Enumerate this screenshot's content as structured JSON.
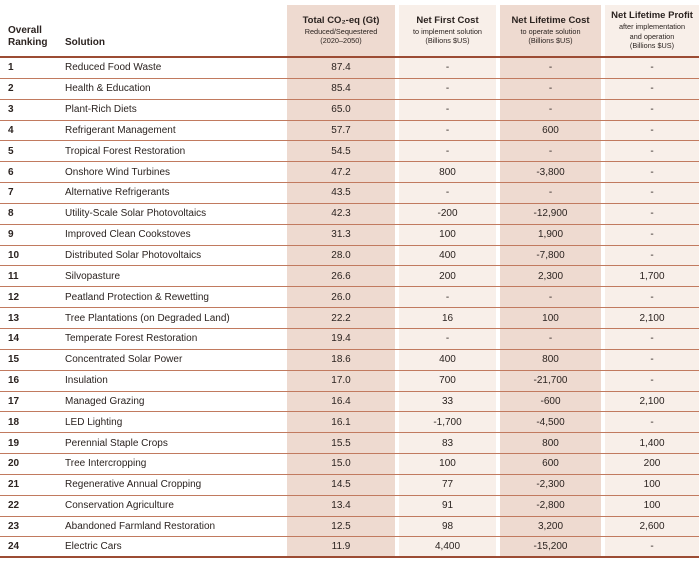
{
  "colors": {
    "cell-dark": "#eedad0",
    "cell-light": "#f8efe9",
    "line-heavy": "#9c4c34",
    "line-row": "#c17a5f",
    "text": "#2b2320"
  },
  "chart_data": {
    "type": "table",
    "columns": [
      {
        "label": "Overall Ranking"
      },
      {
        "label": "Solution"
      },
      {
        "label": "Total CO₂-eq (Gt)",
        "sub1": "Reduced/Sequestered",
        "sub2": "(2020–2050)"
      },
      {
        "label": "Net First Cost",
        "sub1": "to implement solution",
        "sub2": "(Billions $US)"
      },
      {
        "label": "Net Lifetime Cost",
        "sub1": "to operate solution",
        "sub2": "(Billions $US)"
      },
      {
        "label": "Net Lifetime Profit",
        "sub1": "after implementation",
        "sub2": "and operation",
        "sub3": "(Billions $US)"
      }
    ],
    "rows": [
      {
        "rank": "1",
        "solution": "Reduced Food Waste",
        "co2": "87.4",
        "first_cost": "-",
        "lifetime_cost": "-",
        "lifetime_profit": "-"
      },
      {
        "rank": "2",
        "solution": "Health & Education",
        "co2": "85.4",
        "first_cost": "-",
        "lifetime_cost": "-",
        "lifetime_profit": "-"
      },
      {
        "rank": "3",
        "solution": "Plant-Rich Diets",
        "co2": "65.0",
        "first_cost": "-",
        "lifetime_cost": "-",
        "lifetime_profit": "-"
      },
      {
        "rank": "4",
        "solution": "Refrigerant Management",
        "co2": "57.7",
        "first_cost": "-",
        "lifetime_cost": "600",
        "lifetime_profit": "-"
      },
      {
        "rank": "5",
        "solution": "Tropical Forest Restoration",
        "co2": "54.5",
        "first_cost": "-",
        "lifetime_cost": "-",
        "lifetime_profit": "-"
      },
      {
        "rank": "6",
        "solution": "Onshore Wind Turbines",
        "co2": "47.2",
        "first_cost": "800",
        "lifetime_cost": "-3,800",
        "lifetime_profit": "-"
      },
      {
        "rank": "7",
        "solution": "Alternative Refrigerants",
        "co2": "43.5",
        "first_cost": "-",
        "lifetime_cost": "-",
        "lifetime_profit": "-"
      },
      {
        "rank": "8",
        "solution": "Utility-Scale Solar Photovoltaics",
        "co2": "42.3",
        "first_cost": "-200",
        "lifetime_cost": "-12,900",
        "lifetime_profit": "-"
      },
      {
        "rank": "9",
        "solution": "Improved Clean Cookstoves",
        "co2": "31.3",
        "first_cost": "100",
        "lifetime_cost": "1,900",
        "lifetime_profit": "-"
      },
      {
        "rank": "10",
        "solution": "Distributed Solar Photovoltaics",
        "co2": "28.0",
        "first_cost": "400",
        "lifetime_cost": "-7,800",
        "lifetime_profit": "-"
      },
      {
        "rank": "11",
        "solution": "Silvopasture",
        "co2": "26.6",
        "first_cost": "200",
        "lifetime_cost": "2,300",
        "lifetime_profit": "1,700"
      },
      {
        "rank": "12",
        "solution": "Peatland Protection & Rewetting",
        "co2": "26.0",
        "first_cost": "-",
        "lifetime_cost": "-",
        "lifetime_profit": "-"
      },
      {
        "rank": "13",
        "solution": "Tree Plantations (on Degraded Land)",
        "co2": "22.2",
        "first_cost": "16",
        "lifetime_cost": "100",
        "lifetime_profit": "2,100"
      },
      {
        "rank": "14",
        "solution": "Temperate Forest Restoration",
        "co2": "19.4",
        "first_cost": "-",
        "lifetime_cost": "-",
        "lifetime_profit": "-"
      },
      {
        "rank": "15",
        "solution": "Concentrated Solar Power",
        "co2": "18.6",
        "first_cost": "400",
        "lifetime_cost": "800",
        "lifetime_profit": "-"
      },
      {
        "rank": "16",
        "solution": "Insulation",
        "co2": "17.0",
        "first_cost": "700",
        "lifetime_cost": "-21,700",
        "lifetime_profit": "-"
      },
      {
        "rank": "17",
        "solution": "Managed Grazing",
        "co2": "16.4",
        "first_cost": "33",
        "lifetime_cost": "-600",
        "lifetime_profit": "2,100"
      },
      {
        "rank": "18",
        "solution": "LED Lighting",
        "co2": "16.1",
        "first_cost": "-1,700",
        "lifetime_cost": "-4,500",
        "lifetime_profit": "-"
      },
      {
        "rank": "19",
        "solution": "Perennial Staple Crops",
        "co2": "15.5",
        "first_cost": "83",
        "lifetime_cost": "800",
        "lifetime_profit": "1,400"
      },
      {
        "rank": "20",
        "solution": "Tree Intercropping",
        "co2": "15.0",
        "first_cost": "100",
        "lifetime_cost": "600",
        "lifetime_profit": "200"
      },
      {
        "rank": "21",
        "solution": "Regenerative Annual Cropping",
        "co2": "14.5",
        "first_cost": "77",
        "lifetime_cost": "-2,300",
        "lifetime_profit": "100"
      },
      {
        "rank": "22",
        "solution": "Conservation Agriculture",
        "co2": "13.4",
        "first_cost": "91",
        "lifetime_cost": "-2,800",
        "lifetime_profit": "100"
      },
      {
        "rank": "23",
        "solution": "Abandoned Farmland Restoration",
        "co2": "12.5",
        "first_cost": "98",
        "lifetime_cost": "3,200",
        "lifetime_profit": "2,600"
      },
      {
        "rank": "24",
        "solution": "Electric Cars",
        "co2": "11.9",
        "first_cost": "4,400",
        "lifetime_cost": "-15,200",
        "lifetime_profit": "-"
      }
    ]
  }
}
